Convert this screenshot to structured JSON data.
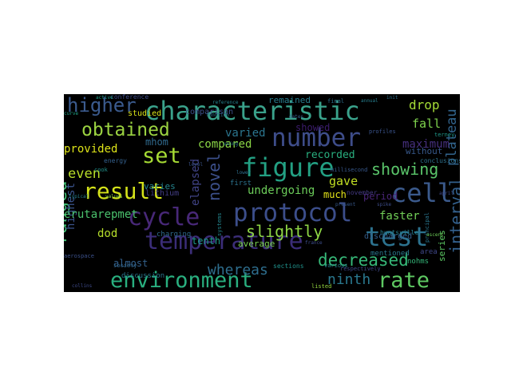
{
  "words": [
    {
      "text": "characteristic",
      "color": "#3aa28b"
    },
    {
      "text": "higher",
      "color": "#3b5b8e"
    },
    {
      "text": "obtained",
      "color": "#9bd341"
    },
    {
      "text": "set",
      "color": "#a6db34"
    },
    {
      "text": "number",
      "color": "#3e4d8a"
    },
    {
      "text": "figure",
      "color": "#23a083"
    },
    {
      "text": "showing",
      "color": "#5ac56a"
    },
    {
      "text": "result",
      "color": "#d4e21a"
    },
    {
      "text": "cell",
      "color": "#3b5a8c"
    },
    {
      "text": "cycle",
      "color": "#482878"
    },
    {
      "text": "protocol",
      "color": "#3c4e8b"
    },
    {
      "text": "test",
      "color": "#2c728e"
    },
    {
      "text": "temperature",
      "color": "#3b2d78"
    },
    {
      "text": "environment",
      "color": "#29af7f"
    },
    {
      "text": "rate",
      "color": "#5ec962"
    },
    {
      "text": "decreased",
      "color": "#36b878"
    },
    {
      "text": "ranged",
      "color": "#40bd72"
    },
    {
      "text": "interval",
      "color": "#33608d"
    },
    {
      "text": "plateau",
      "color": "#32658e"
    },
    {
      "text": "novel",
      "color": "#3c508b"
    },
    {
      "text": "slightly",
      "color": "#8ed645"
    },
    {
      "text": "even",
      "color": "#b8de29"
    },
    {
      "text": "provided",
      "color": "#dde318"
    },
    {
      "text": "drop",
      "color": "#a5db36"
    },
    {
      "text": "fall",
      "color": "#7fd34e"
    },
    {
      "text": "faster",
      "color": "#71cf57"
    },
    {
      "text": "ninth",
      "color": "#2a788e"
    },
    {
      "text": "highest",
      "color": "#3a538b"
    },
    {
      "text": "almost",
      "color": "#34618d"
    },
    {
      "text": "whereas",
      "color": "#2e6e8e"
    },
    {
      "text": "tenth",
      "color": "#1f9a8a"
    },
    {
      "text": "undergoing",
      "color": "#6ccd5a"
    },
    {
      "text": "elapsed",
      "color": "#414487"
    },
    {
      "text": "erutarepmet",
      "color": "#4ac16d"
    },
    {
      "text": "maximum",
      "color": "#46307e"
    },
    {
      "text": "compared",
      "color": "#8bd646"
    },
    {
      "text": "varied",
      "color": "#2b758e"
    },
    {
      "text": "gave",
      "color": "#c2df23"
    },
    {
      "text": "dod",
      "color": "#b5de2b"
    },
    {
      "text": "mhom",
      "color": "#306a8e"
    },
    {
      "text": "recorded",
      "color": "#29af7f"
    },
    {
      "text": "showed",
      "color": "#3b1c6c"
    },
    {
      "text": "much",
      "color": "#e5e419"
    },
    {
      "text": "period",
      "color": "#482475"
    },
    {
      "text": "remained",
      "color": "#287d8e"
    },
    {
      "text": "comparison",
      "color": "#3c4f8a"
    },
    {
      "text": "studied",
      "color": "#d8e219"
    },
    {
      "text": "varies",
      "color": "#25848e"
    },
    {
      "text": "lithium",
      "color": "#433e85"
    },
    {
      "text": "average",
      "color": "#7ad151"
    },
    {
      "text": "charging",
      "color": "#2f6b8e"
    },
    {
      "text": "discharged",
      "color": "#355f8d"
    },
    {
      "text": "mentioned",
      "color": "#2a788e"
    },
    {
      "text": "without",
      "color": "#38598c"
    },
    {
      "text": "conclusions",
      "color": "#2d718e"
    },
    {
      "text": "series",
      "color": "#5cc863"
    },
    {
      "text": "nohms",
      "color": "#35b779"
    },
    {
      "text": "area",
      "color": "#3f4889"
    },
    {
      "text": "first",
      "color": "#2c738e"
    },
    {
      "text": "november",
      "color": "#443a83"
    },
    {
      "text": "discussion",
      "color": "#2a768e"
    },
    {
      "text": "sections",
      "color": "#20928c"
    },
    {
      "text": "conference",
      "color": "#3e4c8a"
    },
    {
      "text": "listed",
      "color": "#95d840"
    },
    {
      "text": "huntsville",
      "color": "#27808e"
    },
    {
      "text": "various",
      "color": "#26828e"
    },
    {
      "text": "profiles",
      "color": "#3a548c"
    },
    {
      "text": "final",
      "color": "#2d708e"
    },
    {
      "text": "respectively",
      "color": "#3f4788"
    },
    {
      "text": "society",
      "color": "#31678e"
    },
    {
      "text": "aerospace",
      "color": "#3b518b"
    },
    {
      "text": "energy",
      "color": "#34608d"
    },
    {
      "text": "systems",
      "color": "#24868e"
    },
    {
      "text": "principal",
      "color": "#2a768e"
    },
    {
      "text": "millisecond",
      "color": "#38588c"
    },
    {
      "text": "ascent",
      "color": "#6ece58"
    },
    {
      "text": "cook",
      "color": "#21918c"
    },
    {
      "text": "terney",
      "color": "#1f998a"
    },
    {
      "text": "collins",
      "color": "#3e4a89"
    },
    {
      "text": "function",
      "color": "#2c728e"
    },
    {
      "text": "france",
      "color": "#3d4e8a"
    },
    {
      "text": "using",
      "color": "#2a798e"
    },
    {
      "text": "values",
      "color": "#90d743"
    },
    {
      "text": "present",
      "color": "#37598c"
    },
    {
      "text": "typical",
      "color": "#26818e"
    },
    {
      "text": "spike",
      "color": "#3d4d8a"
    },
    {
      "text": "reference",
      "color": "#25858e"
    },
    {
      "text": "curve",
      "color": "#20a386"
    },
    {
      "text": "april",
      "color": "#3f4788"
    },
    {
      "text": "annual",
      "color": "#277f8e"
    },
    {
      "text": "init",
      "color": "#2c728e"
    },
    {
      "text": "active",
      "color": "#1f9e89"
    },
    {
      "text": "level",
      "color": "#3a538b"
    },
    {
      "text": "dates",
      "color": "#35608d"
    },
    {
      "text": "lower",
      "color": "#2e6f8e"
    }
  ]
}
